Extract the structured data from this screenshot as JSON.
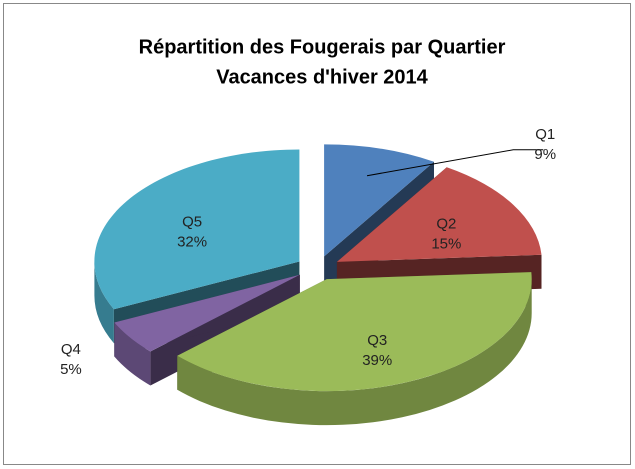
{
  "chart_data": {
    "type": "pie3d",
    "title": "Répartition des Fougerais par Quartier",
    "subtitle": "Vacances d'hiver 2014",
    "categories": [
      "Q1",
      "Q2",
      "Q3",
      "Q4",
      "Q5"
    ],
    "values": [
      9,
      15,
      39,
      5,
      32
    ],
    "value_labels": [
      "9%",
      "15%",
      "39%",
      "5%",
      "32%"
    ],
    "colors": [
      "#4f81bd",
      "#c0504d",
      "#9bbb59",
      "#8064a2",
      "#4bacc6"
    ]
  }
}
